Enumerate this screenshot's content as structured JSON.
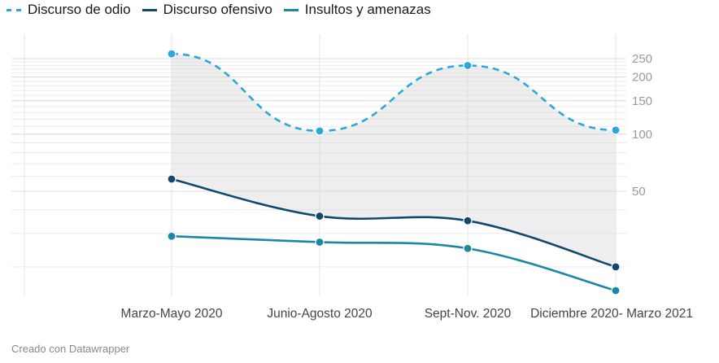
{
  "legend": [
    {
      "name": "Discurso de odio",
      "color": "#2aa7db",
      "dashed": true
    },
    {
      "name": "Discurso ofensivo",
      "color": "#0f4a6e",
      "dashed": false
    },
    {
      "name": "Insultos y amenazas",
      "color": "#1a86a8",
      "dashed": false
    }
  ],
  "credit": "Creado con Datawrapper",
  "chart_data": {
    "type": "line",
    "scale": "log",
    "title": "",
    "xlabel": "",
    "ylabel": "",
    "categories": [
      "Marzo-Mayo 2020",
      "Junio-Agosto 2020",
      "Sept-Nov. 2020",
      "Diciembre 2020- Marzo 2021"
    ],
    "ylim": [
      14,
      290
    ],
    "yticks": [
      50,
      100,
      150,
      200,
      250
    ],
    "grid": true,
    "legend_position": "top-left",
    "series": [
      {
        "name": "Discurso de odio",
        "values": [
          265,
          104,
          230,
          105
        ],
        "color": "#2aa7db",
        "dashed": true
      },
      {
        "name": "Discurso ofensivo",
        "values": [
          58,
          37,
          35,
          20
        ],
        "color": "#0f4a6e",
        "dashed": false
      },
      {
        "name": "Insultos y amenazas",
        "values": [
          29,
          27,
          25,
          15
        ],
        "color": "#1a86a8",
        "dashed": false
      }
    ]
  }
}
